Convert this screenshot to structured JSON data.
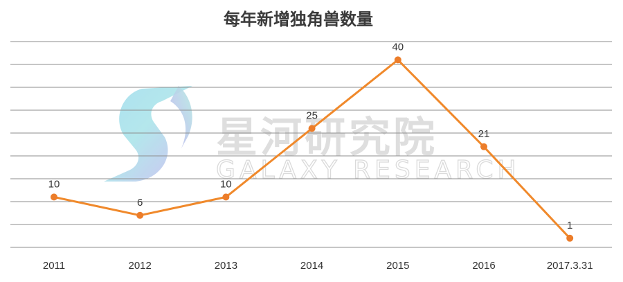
{
  "watermark": {
    "name_cn": "星河研究院",
    "name_en": "GALAXY RESEARCH"
  },
  "chart_data": {
    "type": "line",
    "title": "每年新增独角兽数量",
    "categories": [
      "2011",
      "2012",
      "2013",
      "2014",
      "2015",
      "2016",
      "2017.3.31"
    ],
    "values": [
      10,
      6,
      10,
      25,
      40,
      21,
      1
    ],
    "data_labels": [
      "10",
      "6",
      "10",
      "25",
      "40",
      "21",
      "1"
    ],
    "ylim": [
      -1,
      44
    ],
    "grid": true,
    "grid_values": [
      -1,
      4,
      9,
      14,
      19,
      24,
      29,
      34,
      39,
      44
    ],
    "legend": "none",
    "colors": {
      "line": "#f0892b",
      "marker": "#ec7d2a",
      "grid": "#8e8e8e",
      "text": "#333333"
    }
  }
}
